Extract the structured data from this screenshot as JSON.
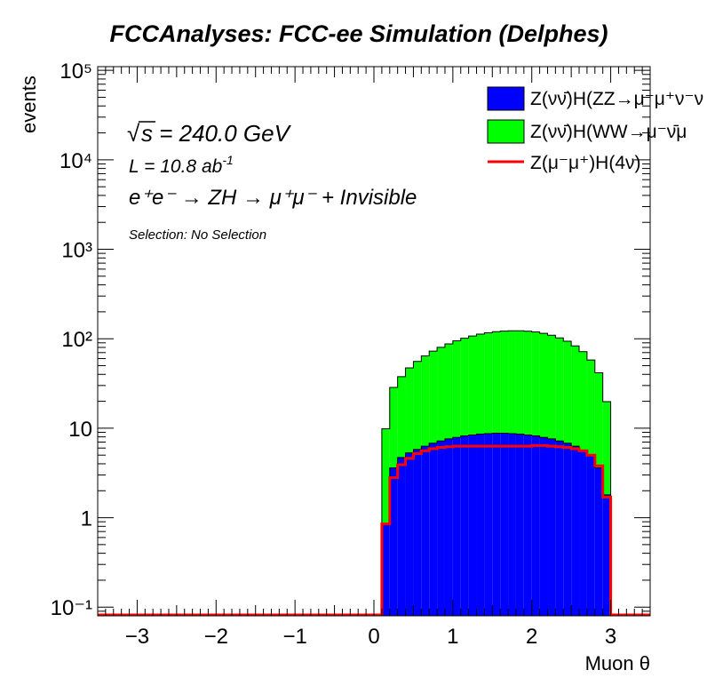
{
  "chart_data": {
    "type": "histogram",
    "title": "FCCAnalyses: FCC-ee Simulation (Delphes)",
    "xlabel": "Muon θ",
    "ylabel": "events",
    "xlim": [
      -3.5,
      3.5
    ],
    "ylim": [
      0.08,
      110000
    ],
    "yscale": "log",
    "stacked": true,
    "x_ticks": [
      "−3",
      "−2",
      "−1",
      "0",
      "1",
      "2",
      "3"
    ],
    "y_ticks": [
      "10⁻¹",
      "1",
      "10",
      "10²",
      "10³",
      "10⁴",
      "10⁵"
    ],
    "annotations": {
      "sqrt_s": "s = 240.0 GeV",
      "lumi": "L = 10.8 ab",
      "lumi_exp": "-1",
      "process": "e⁺e⁻ → ZH → μ⁺μ⁻ + Invisible",
      "selection": "Selection: No Selection"
    },
    "legend_position": "top-right",
    "bin_edges": [
      0.1,
      0.2,
      0.3,
      0.4,
      0.5,
      0.6,
      0.7,
      0.8,
      0.9,
      1.0,
      1.1,
      1.2,
      1.3,
      1.4,
      1.5,
      1.6,
      1.7,
      1.8,
      1.9,
      2.0,
      2.1,
      2.2,
      2.3,
      2.4,
      2.5,
      2.6,
      2.7,
      2.8,
      2.9,
      3.0
    ],
    "series": [
      {
        "name": "Z(νν̄)H(ZZ→μ⁻μ⁺ν⁻ν)",
        "legend_label": "Z(νν̄)H(ZZ→μ⁻μ⁺ν⁻ν",
        "color": "#0000ff",
        "style": "fill",
        "values": [
          0.85,
          3.6,
          4.7,
          5.3,
          5.8,
          6.3,
          6.8,
          7.2,
          7.6,
          7.9,
          8.2,
          8.4,
          8.6,
          8.7,
          8.8,
          8.8,
          8.7,
          8.6,
          8.4,
          8.2,
          7.9,
          7.6,
          7.2,
          6.8,
          6.3,
          5.7,
          4.9,
          3.6,
          1.8
        ]
      },
      {
        "name": "Z(νν̄)H(WW→μ⁻ν̄μ⁺ν)",
        "legend_label": "Z(νν̄)H(WW→μ⁻ν̄μ",
        "color": "#00ff00",
        "style": "fill",
        "values": [
          9,
          25,
          33,
          42,
          50,
          58,
          66,
          73,
          80,
          87,
          93,
          99,
          104,
          108,
          111,
          113,
          114,
          114,
          113,
          111,
          107,
          102,
          95,
          87,
          77,
          66,
          53,
          38,
          18
        ]
      },
      {
        "name": "Z(μ⁻μ⁺)H(4ν)",
        "legend_label": "Z(μ⁻μ⁺)H(4ν)",
        "color": "#ff0000",
        "style": "line",
        "values": [
          0.85,
          2.8,
          3.9,
          4.6,
          5.2,
          5.6,
          5.9,
          6.1,
          6.2,
          6.3,
          6.3,
          6.3,
          6.3,
          6.3,
          6.3,
          6.3,
          6.3,
          6.3,
          6.3,
          6.4,
          6.4,
          6.3,
          6.2,
          6.1,
          5.9,
          5.6,
          5.0,
          3.8,
          1.7
        ]
      }
    ]
  }
}
